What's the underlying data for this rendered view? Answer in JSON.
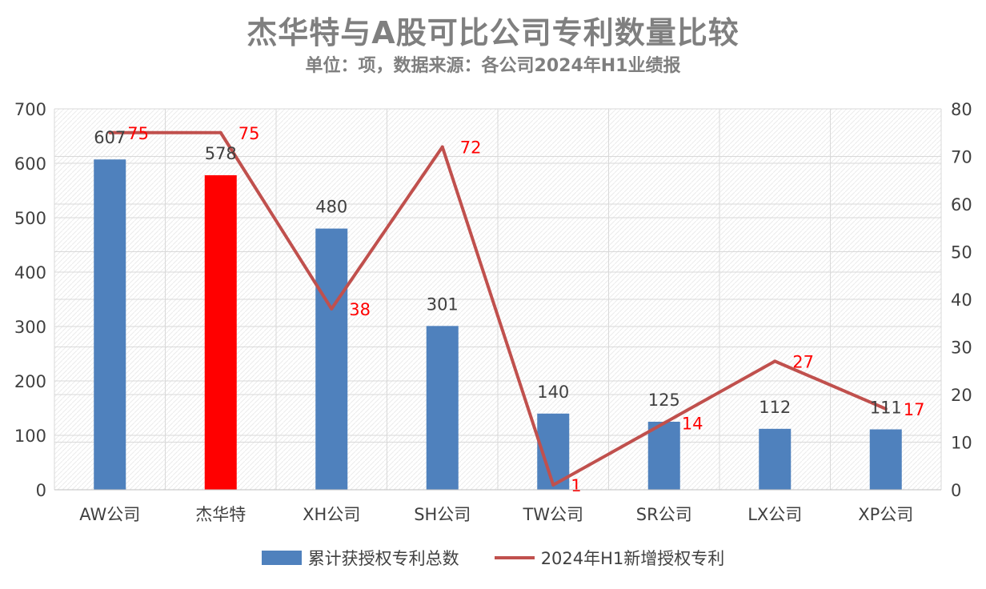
{
  "chart_data": {
    "type": "bar+line",
    "title": "杰华特与A股可比公司专利数量比较",
    "subtitle": "单位：项，数据来源：各公司2024年H1业绩报",
    "categories": [
      "AW公司",
      "杰华特",
      "XH公司",
      "SH公司",
      "TW公司",
      "SR公司",
      "LX公司",
      "XP公司"
    ],
    "series": [
      {
        "name": "累计获授权专利总数",
        "type": "bar",
        "axis": "left",
        "color": "#4f81bd",
        "values": [
          607,
          578,
          480,
          301,
          140,
          125,
          112,
          111
        ],
        "highlight": {
          "index": 1,
          "color": "#ff0000"
        }
      },
      {
        "name": "2024年H1新增授权专利",
        "type": "line",
        "axis": "right",
        "color": "#c0504d",
        "label_color": "#ff0000",
        "values": [
          75,
          75,
          38,
          72,
          1,
          14,
          27,
          17
        ]
      }
    ],
    "y_left": {
      "min": 0,
      "max": 700,
      "ticks": [
        0,
        100,
        200,
        300,
        400,
        500,
        600,
        700
      ]
    },
    "y_right": {
      "min": 0,
      "max": 80,
      "ticks": [
        0,
        10,
        20,
        30,
        40,
        50,
        60,
        70,
        80
      ]
    },
    "grid": true,
    "legend_position": "bottom"
  }
}
